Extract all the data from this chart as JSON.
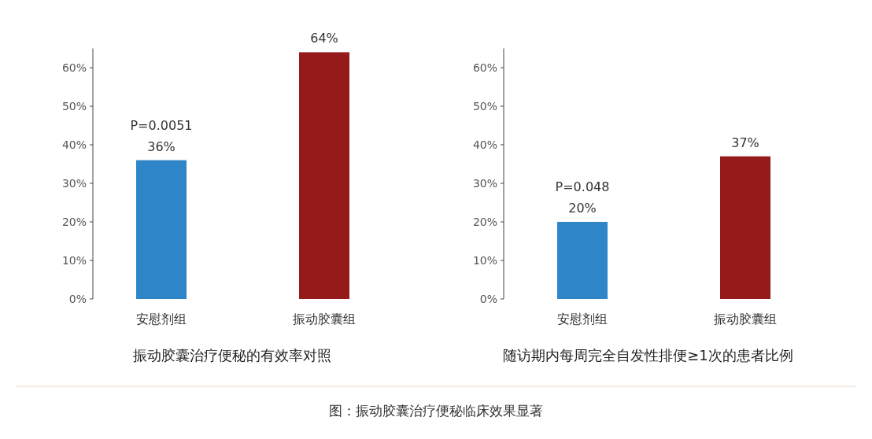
{
  "chart_data": [
    {
      "type": "bar",
      "title": "振动胶囊治疗便秘的有效率对照",
      "categories": [
        "安慰剂组",
        "振动胶囊组"
      ],
      "values": [
        36,
        64
      ],
      "colors": [
        "#2e86c8",
        "#951b1b"
      ],
      "value_labels": [
        "36%",
        "64%"
      ],
      "ylim": [
        0,
        65
      ],
      "yticks": [
        {
          "value": 0,
          "label": "0%"
        },
        {
          "value": 10,
          "label": "10%"
        },
        {
          "value": 20,
          "label": "20%"
        },
        {
          "value": 30,
          "label": "30%"
        },
        {
          "value": 40,
          "label": "40%"
        },
        {
          "value": 50,
          "label": "50%"
        },
        {
          "value": 60,
          "label": "60%"
        }
      ],
      "annotations": [
        {
          "text": "P=0.0051",
          "x": "安慰剂组",
          "y": 36
        }
      ]
    },
    {
      "type": "bar",
      "title": "随访期内每周完全自发性排便≥1次的患者比例",
      "categories": [
        "安慰剂组",
        "振动胶囊组"
      ],
      "values": [
        20,
        37
      ],
      "colors": [
        "#2e86c8",
        "#951b1b"
      ],
      "value_labels": [
        "20%",
        "37%"
      ],
      "ylim": [
        0,
        65
      ],
      "yticks": [
        {
          "value": 0,
          "label": "0%"
        },
        {
          "value": 10,
          "label": "10%"
        },
        {
          "value": 20,
          "label": "20%"
        },
        {
          "value": 30,
          "label": "30%"
        },
        {
          "value": 40,
          "label": "40%"
        },
        {
          "value": 50,
          "label": "50%"
        },
        {
          "value": 60,
          "label": "60%"
        }
      ],
      "annotations": [
        {
          "text": "P=0.048",
          "x": "安慰剂组",
          "y": 20
        }
      ]
    },
    {
      "type": "other",
      "annotations": [
        "图：振动胶囊治疗便秘临床效果显著"
      ]
    }
  ]
}
